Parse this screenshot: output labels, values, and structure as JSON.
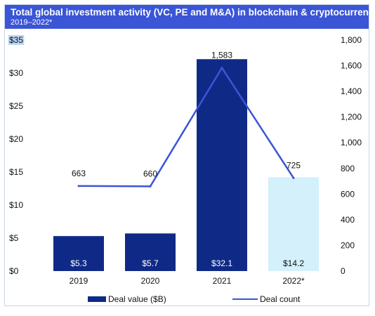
{
  "header": {
    "title": "Total global investment activity (VC, PE and M&A) in blockchain & cryptocurrency",
    "subtitle": "2019–2022*"
  },
  "colors": {
    "header_bg": "#3a55d6",
    "bar_dark": "#0f2a86",
    "bar_light": "#d3f0fb",
    "line": "#3a55d6"
  },
  "chart_data": {
    "type": "bar",
    "categories": [
      "2019",
      "2020",
      "2021",
      "2022*"
    ],
    "series": [
      {
        "name": "Deal value ($B)",
        "type": "bar",
        "axis": "left",
        "values": [
          5.3,
          5.7,
          32.1,
          14.2
        ],
        "labels": [
          "$5.3",
          "$5.7",
          "$32.1",
          "$14.2"
        ],
        "colors": [
          "#0f2a86",
          "#0f2a86",
          "#0f2a86",
          "#d3f0fb"
        ]
      },
      {
        "name": "Deal count",
        "type": "line",
        "axis": "right",
        "values": [
          663,
          660,
          1583,
          725
        ],
        "labels": [
          "663",
          "660",
          "1,583",
          "725"
        ]
      }
    ],
    "y_left": {
      "ylim": [
        0,
        35
      ],
      "ticks": [
        0,
        5,
        10,
        15,
        20,
        25,
        30,
        35
      ],
      "tick_labels": [
        "$0",
        "$5",
        "$10",
        "$15",
        "$20",
        "$25",
        "$30",
        "$35"
      ]
    },
    "y_right": {
      "ylim": [
        0,
        1800
      ],
      "ticks": [
        0,
        200,
        400,
        600,
        800,
        1000,
        1200,
        1400,
        1600,
        1800
      ],
      "tick_labels": [
        "0",
        "200",
        "400",
        "600",
        "800",
        "1,000",
        "1,200",
        "1,400",
        "1,600",
        "1,800"
      ]
    },
    "grid": false,
    "legend": {
      "position": "bottom",
      "entries": [
        {
          "label": "Deal value ($B)",
          "kind": "bar"
        },
        {
          "label": "Deal count",
          "kind": "line"
        }
      ]
    }
  }
}
